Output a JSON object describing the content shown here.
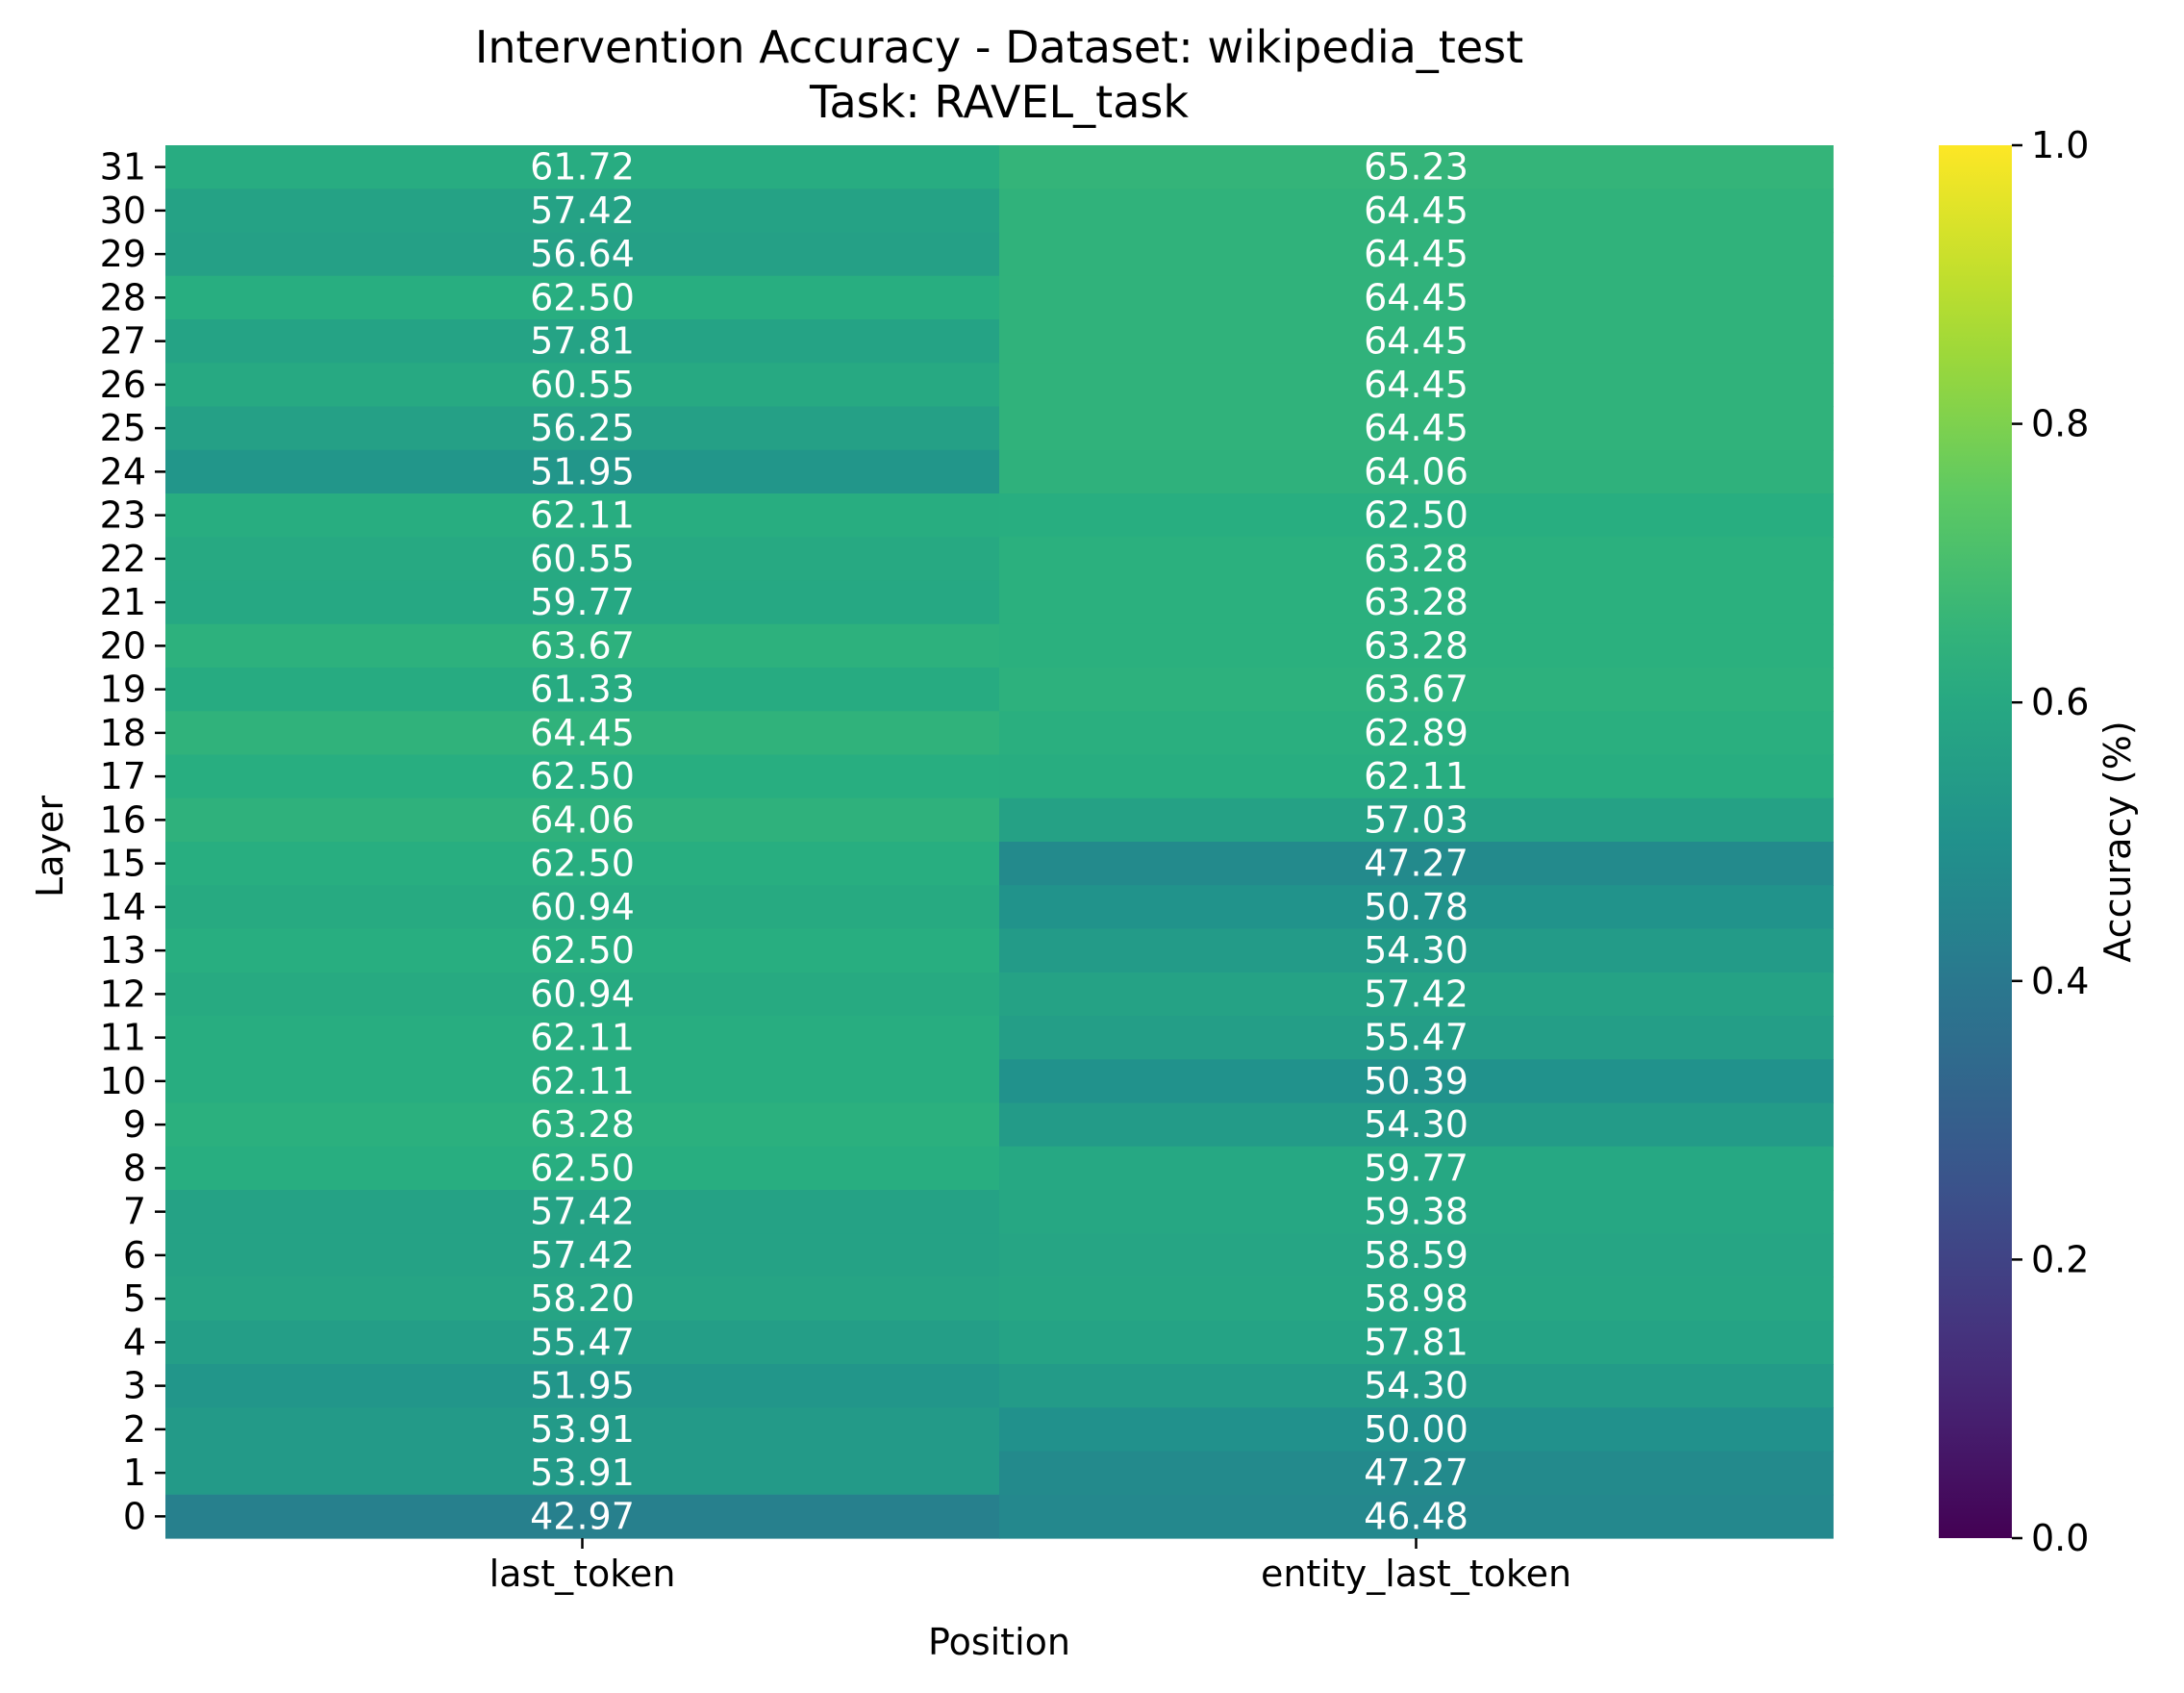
{
  "chart_data": {
    "type": "heatmap",
    "title": "Intervention Accuracy - Dataset: wikipedia_test",
    "subtitle": "Task: RAVEL_task",
    "xlabel": "Position",
    "ylabel": "Layer",
    "x_categories": [
      "last_token",
      "entity_last_token"
    ],
    "y_categories": [
      "31",
      "30",
      "29",
      "28",
      "27",
      "26",
      "25",
      "24",
      "23",
      "22",
      "21",
      "20",
      "19",
      "18",
      "17",
      "16",
      "15",
      "14",
      "13",
      "12",
      "11",
      "10",
      "9",
      "8",
      "7",
      "6",
      "5",
      "4",
      "3",
      "2",
      "1",
      "0"
    ],
    "values": [
      [
        61.72,
        65.23
      ],
      [
        57.42,
        64.45
      ],
      [
        56.64,
        64.45
      ],
      [
        62.5,
        64.45
      ],
      [
        57.81,
        64.45
      ],
      [
        60.55,
        64.45
      ],
      [
        56.25,
        64.45
      ],
      [
        51.95,
        64.06
      ],
      [
        62.11,
        62.5
      ],
      [
        60.55,
        63.28
      ],
      [
        59.77,
        63.28
      ],
      [
        63.67,
        63.28
      ],
      [
        61.33,
        63.67
      ],
      [
        64.45,
        62.89
      ],
      [
        62.5,
        62.11
      ],
      [
        64.06,
        57.03
      ],
      [
        62.5,
        47.27
      ],
      [
        60.94,
        50.78
      ],
      [
        62.5,
        54.3
      ],
      [
        60.94,
        57.42
      ],
      [
        62.11,
        55.47
      ],
      [
        62.11,
        50.39
      ],
      [
        63.28,
        54.3
      ],
      [
        62.5,
        59.77
      ],
      [
        57.42,
        59.38
      ],
      [
        57.42,
        58.59
      ],
      [
        58.2,
        58.98
      ],
      [
        55.47,
        57.81
      ],
      [
        51.95,
        54.3
      ],
      [
        53.91,
        50.0
      ],
      [
        53.91,
        47.27
      ],
      [
        42.97,
        46.48
      ]
    ],
    "value_format": "2 decimals",
    "colormap": "viridis",
    "colorbar": {
      "label": "Accuracy (%)",
      "range": [
        0.0,
        1.0
      ],
      "ticks": [
        "0.0",
        "0.2",
        "0.4",
        "0.6",
        "0.8",
        "1.0"
      ]
    },
    "cell_text_color": "#ffffff"
  }
}
